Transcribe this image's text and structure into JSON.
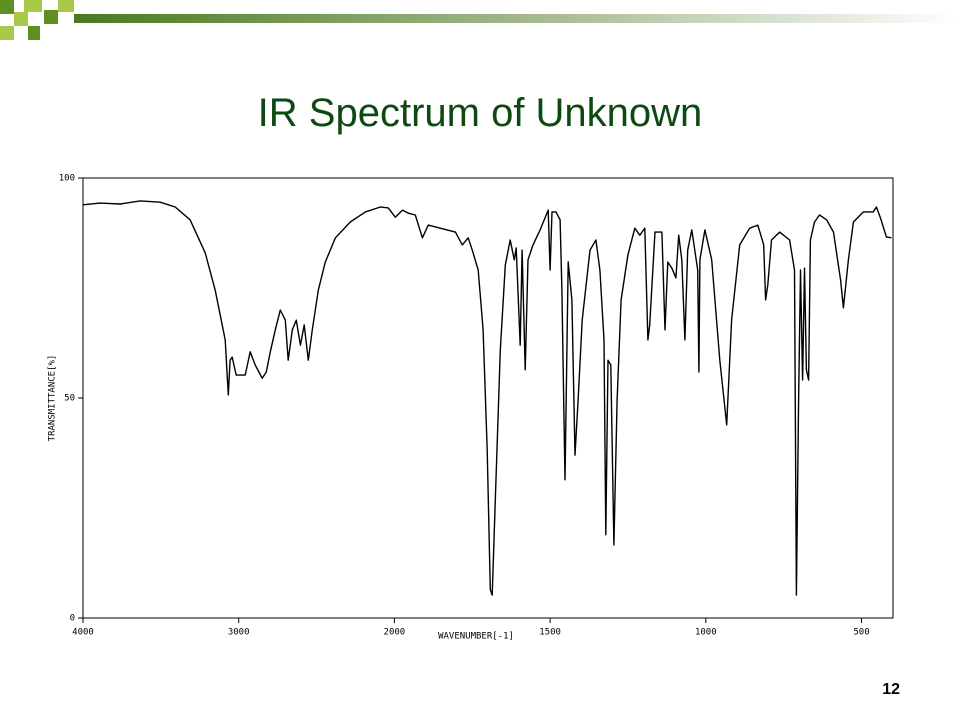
{
  "page_number": "12",
  "chart_data": {
    "type": "line",
    "title": "IR Spectrum of Unknown",
    "x_label": "WAVENUMBER[-1]",
    "y_label": "TRANSMITTANCE[%]",
    "color": "#000000",
    "xlim": [
      4000,
      400
    ],
    "xticks": [
      4000,
      3000,
      2000,
      1500,
      1000,
      500
    ],
    "ylim": [
      0,
      100
    ],
    "yticks": [
      0,
      50,
      100
    ],
    "grid": false,
    "x": [
      4000,
      3891,
      3762,
      3633,
      3505,
      3408,
      3312,
      3215,
      3151,
      3087,
      3067,
      3055,
      3042,
      3016,
      2958,
      2926,
      2894,
      2849,
      2823,
      2797,
      2765,
      2733,
      2701,
      2682,
      2656,
      2630,
      2604,
      2579,
      2553,
      2527,
      2489,
      2444,
      2379,
      2283,
      2186,
      2090,
      2039,
      1997,
      1974,
      1955,
      1933,
      1910,
      1891,
      1853,
      1804,
      1782,
      1763,
      1750,
      1731,
      1715,
      1702,
      1692,
      1686,
      1676,
      1660,
      1644,
      1628,
      1615,
      1609,
      1596,
      1590,
      1580,
      1571,
      1555,
      1532,
      1506,
      1500,
      1494,
      1481,
      1468,
      1462,
      1452,
      1442,
      1430,
      1420,
      1410,
      1397,
      1372,
      1353,
      1340,
      1327,
      1321,
      1314,
      1305,
      1295,
      1285,
      1272,
      1250,
      1228,
      1212,
      1196,
      1186,
      1180,
      1163,
      1141,
      1131,
      1122,
      1109,
      1096,
      1087,
      1077,
      1067,
      1058,
      1045,
      1026,
      1022,
      1019,
      1003,
      981,
      955,
      933,
      917,
      891,
      859,
      833,
      814,
      808,
      801,
      789,
      763,
      731,
      715,
      709,
      702,
      696,
      689,
      683,
      677,
      670,
      664,
      651,
      635,
      612,
      590,
      567,
      558,
      542,
      526,
      494,
      462,
      452,
      439,
      420,
      404
    ],
    "values": [
      93.9,
      94.3,
      94.1,
      94.8,
      94.5,
      93.4,
      90.5,
      83.0,
      74.5,
      63.2,
      50.7,
      58.6,
      59.3,
      55.2,
      55.2,
      60.5,
      57.5,
      54.5,
      55.9,
      60.5,
      65.5,
      70.0,
      67.7,
      58.6,
      65.5,
      67.7,
      62.0,
      66.6,
      58.6,
      65.5,
      74.5,
      80.9,
      86.4,
      90.0,
      92.3,
      93.4,
      93.2,
      91.1,
      92.7,
      92.0,
      91.6,
      86.4,
      89.3,
      88.6,
      87.7,
      84.8,
      86.4,
      83.6,
      79.1,
      65.5,
      38.2,
      6.4,
      5.2,
      26.8,
      60.9,
      80.2,
      85.9,
      81.4,
      84.1,
      62.0,
      83.6,
      56.4,
      81.4,
      84.8,
      88.2,
      92.7,
      79.1,
      92.3,
      92.3,
      90.5,
      74.5,
      31.4,
      80.9,
      72.3,
      37.0,
      49.5,
      67.7,
      83.6,
      85.9,
      79.1,
      63.2,
      18.9,
      58.6,
      57.5,
      16.6,
      49.5,
      72.3,
      82.5,
      88.6,
      87.0,
      88.6,
      63.2,
      66.6,
      87.7,
      87.7,
      65.5,
      80.9,
      79.5,
      77.3,
      87.0,
      81.4,
      63.2,
      83.6,
      88.2,
      79.1,
      55.9,
      81.4,
      88.2,
      81.4,
      58.6,
      43.9,
      67.7,
      84.8,
      88.6,
      89.3,
      84.8,
      72.3,
      75.7,
      85.9,
      87.7,
      85.9,
      79.1,
      5.2,
      49.5,
      79.1,
      54.1,
      79.5,
      56.4,
      54.1,
      85.9,
      90.0,
      91.6,
      90.5,
      87.7,
      76.8,
      70.5,
      81.4,
      90.0,
      92.3,
      92.3,
      93.4,
      90.9,
      86.6,
      86.4
    ]
  }
}
